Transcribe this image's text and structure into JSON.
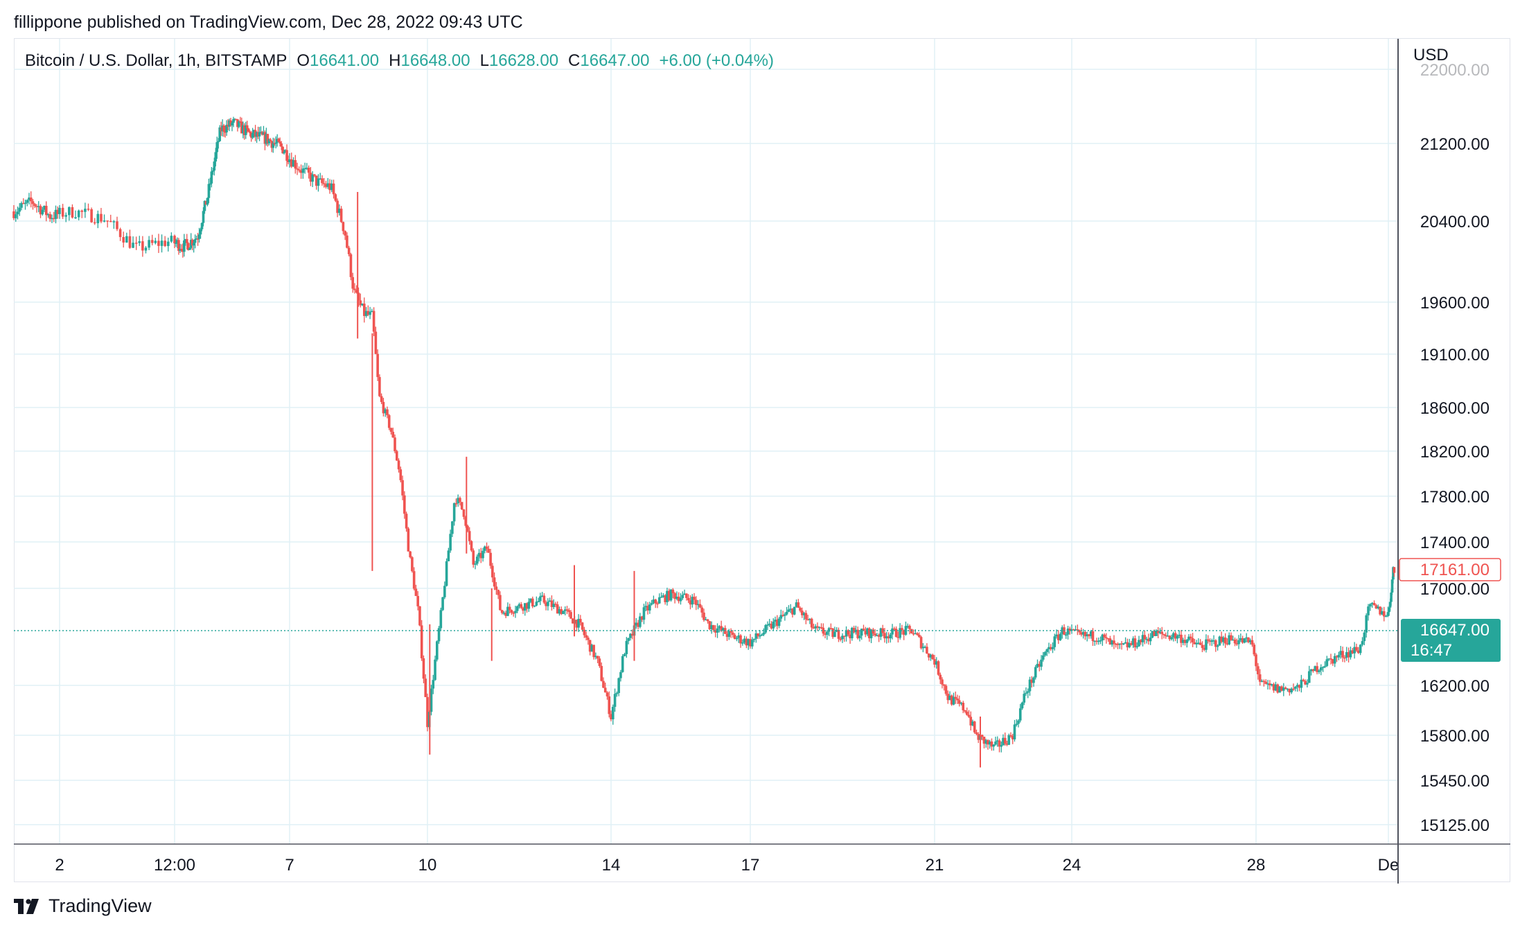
{
  "publisher_line": "fillippone published on TradingView.com, Dec 28, 2022 09:43 UTC",
  "legend": {
    "symbol": "Bitcoin / U.S. Dollar, 1h, BITSTAMP",
    "open_label": "O",
    "open": "16641.00",
    "high_label": "H",
    "high": "16648.00",
    "low_label": "L",
    "low": "16628.00",
    "close_label": "C",
    "close": "16647.00",
    "change": "+6.00 (+0.04%)"
  },
  "brand": "TradingView",
  "colors": {
    "up": "#26a69a",
    "down": "#ef5350",
    "grid": "#e0f0f5",
    "text": "#131722",
    "price_tag": "#26a69a",
    "marker_tag": "#ef5350"
  },
  "chart_data": {
    "type": "candlestick",
    "currency": "USD",
    "ylim": [
      14950,
      22150
    ],
    "y_ticks": [
      {
        "value": 22000,
        "label": "22000.00"
      },
      {
        "value": 21200,
        "label": "21200.00"
      },
      {
        "value": 20400,
        "label": "20400.00"
      },
      {
        "value": 19600,
        "label": "19600.00"
      },
      {
        "value": 19100,
        "label": "19100.00"
      },
      {
        "value": 18600,
        "label": "18600.00"
      },
      {
        "value": 18200,
        "label": "18200.00"
      },
      {
        "value": 17800,
        "label": "17800.00"
      },
      {
        "value": 17400,
        "label": "17400.00"
      },
      {
        "value": 17000,
        "label": "17000.00"
      },
      {
        "value": 16200,
        "label": "16200.00"
      },
      {
        "value": 15800,
        "label": "15800.00"
      },
      {
        "value": 15450,
        "label": "15450.00"
      },
      {
        "value": 15125,
        "label": "15125.00"
      }
    ],
    "x_ticks": [
      {
        "day": 2,
        "label": "2"
      },
      {
        "day": 3.5,
        "label": "12:00"
      },
      {
        "day": 7,
        "label": "7"
      },
      {
        "day": 10,
        "label": "10"
      },
      {
        "day": 14,
        "label": "14"
      },
      {
        "day": 17,
        "label": "17"
      },
      {
        "day": 21,
        "label": "21"
      },
      {
        "day": 24,
        "label": "24"
      },
      {
        "day": 28,
        "label": "28"
      },
      {
        "day": 30.8,
        "label": "De"
      }
    ],
    "x_range_days": [
      1.0,
      31.2
    ],
    "last_price": {
      "value": 16647,
      "label": "16647.00",
      "countdown": "16:47"
    },
    "marker_price": {
      "value": 17161,
      "label": "17161.00"
    },
    "close_path": [
      [
        1.0,
        20500
      ],
      [
        1.4,
        20600
      ],
      [
        1.8,
        20450
      ],
      [
        2.2,
        20500
      ],
      [
        2.6,
        20420
      ],
      [
        3.0,
        20130
      ],
      [
        3.4,
        20200
      ],
      [
        3.8,
        20150
      ],
      [
        4.2,
        20250
      ],
      [
        4.5,
        20650
      ],
      [
        4.9,
        21350
      ],
      [
        5.3,
        21420
      ],
      [
        5.8,
        21300
      ],
      [
        6.3,
        21250
      ],
      [
        6.8,
        21150
      ],
      [
        7.2,
        20950
      ],
      [
        7.6,
        20800
      ],
      [
        7.9,
        20750
      ],
      [
        8.2,
        20300
      ],
      [
        8.4,
        19700
      ],
      [
        8.6,
        19500
      ],
      [
        8.8,
        19450
      ],
      [
        8.95,
        18700
      ],
      [
        9.2,
        18400
      ],
      [
        9.4,
        18000
      ],
      [
        9.6,
        17300
      ],
      [
        9.8,
        16800
      ],
      [
        10.0,
        15900
      ],
      [
        10.3,
        16800
      ],
      [
        10.6,
        17800
      ],
      [
        10.8,
        17650
      ],
      [
        11.0,
        17200
      ],
      [
        11.3,
        17350
      ],
      [
        11.6,
        16800
      ],
      [
        12.0,
        16850
      ],
      [
        12.5,
        16900
      ],
      [
        13.0,
        16800
      ],
      [
        13.3,
        16700
      ],
      [
        13.7,
        16400
      ],
      [
        14.0,
        15950
      ],
      [
        14.3,
        16500
      ],
      [
        14.7,
        16800
      ],
      [
        15.0,
        16900
      ],
      [
        15.3,
        16950
      ],
      [
        15.8,
        16900
      ],
      [
        16.1,
        16700
      ],
      [
        16.6,
        16600
      ],
      [
        17.0,
        16550
      ],
      [
        17.5,
        16700
      ],
      [
        18.0,
        16850
      ],
      [
        18.4,
        16650
      ],
      [
        18.8,
        16620
      ],
      [
        19.5,
        16630
      ],
      [
        20.0,
        16620
      ],
      [
        20.5,
        16650
      ],
      [
        21.0,
        16400
      ],
      [
        21.3,
        16100
      ],
      [
        21.7,
        16000
      ],
      [
        21.9,
        15800
      ],
      [
        22.3,
        15700
      ],
      [
        22.7,
        15800
      ],
      [
        23.0,
        16150
      ],
      [
        23.4,
        16450
      ],
      [
        23.8,
        16650
      ],
      [
        24.2,
        16600
      ],
      [
        24.6,
        16600
      ],
      [
        25.0,
        16500
      ],
      [
        25.4,
        16550
      ],
      [
        25.8,
        16620
      ],
      [
        26.3,
        16600
      ],
      [
        26.8,
        16520
      ],
      [
        27.4,
        16580
      ],
      [
        27.9,
        16550
      ],
      [
        28.1,
        16200
      ],
      [
        28.5,
        16170
      ],
      [
        28.9,
        16180
      ],
      [
        29.3,
        16350
      ],
      [
        29.8,
        16450
      ],
      [
        30.2,
        16500
      ],
      [
        30.4,
        16850
      ],
      [
        30.8,
        16780
      ],
      [
        31.0,
        17150
      ]
    ],
    "spikes": [
      {
        "day": 8.48,
        "high": 20700,
        "low": 19250
      },
      {
        "day": 8.8,
        "high": 19300,
        "low": 17150
      },
      {
        "day": 10.05,
        "high": 16700,
        "low": 15650
      },
      {
        "day": 10.85,
        "high": 18150,
        "low": 17300
      },
      {
        "day": 13.2,
        "high": 17200,
        "low": 16600
      },
      {
        "day": 14.5,
        "high": 17150,
        "low": 16400
      },
      {
        "day": 11.4,
        "high": 17000,
        "low": 16400
      },
      {
        "day": 22.0,
        "high": 15950,
        "low": 15550
      }
    ]
  }
}
